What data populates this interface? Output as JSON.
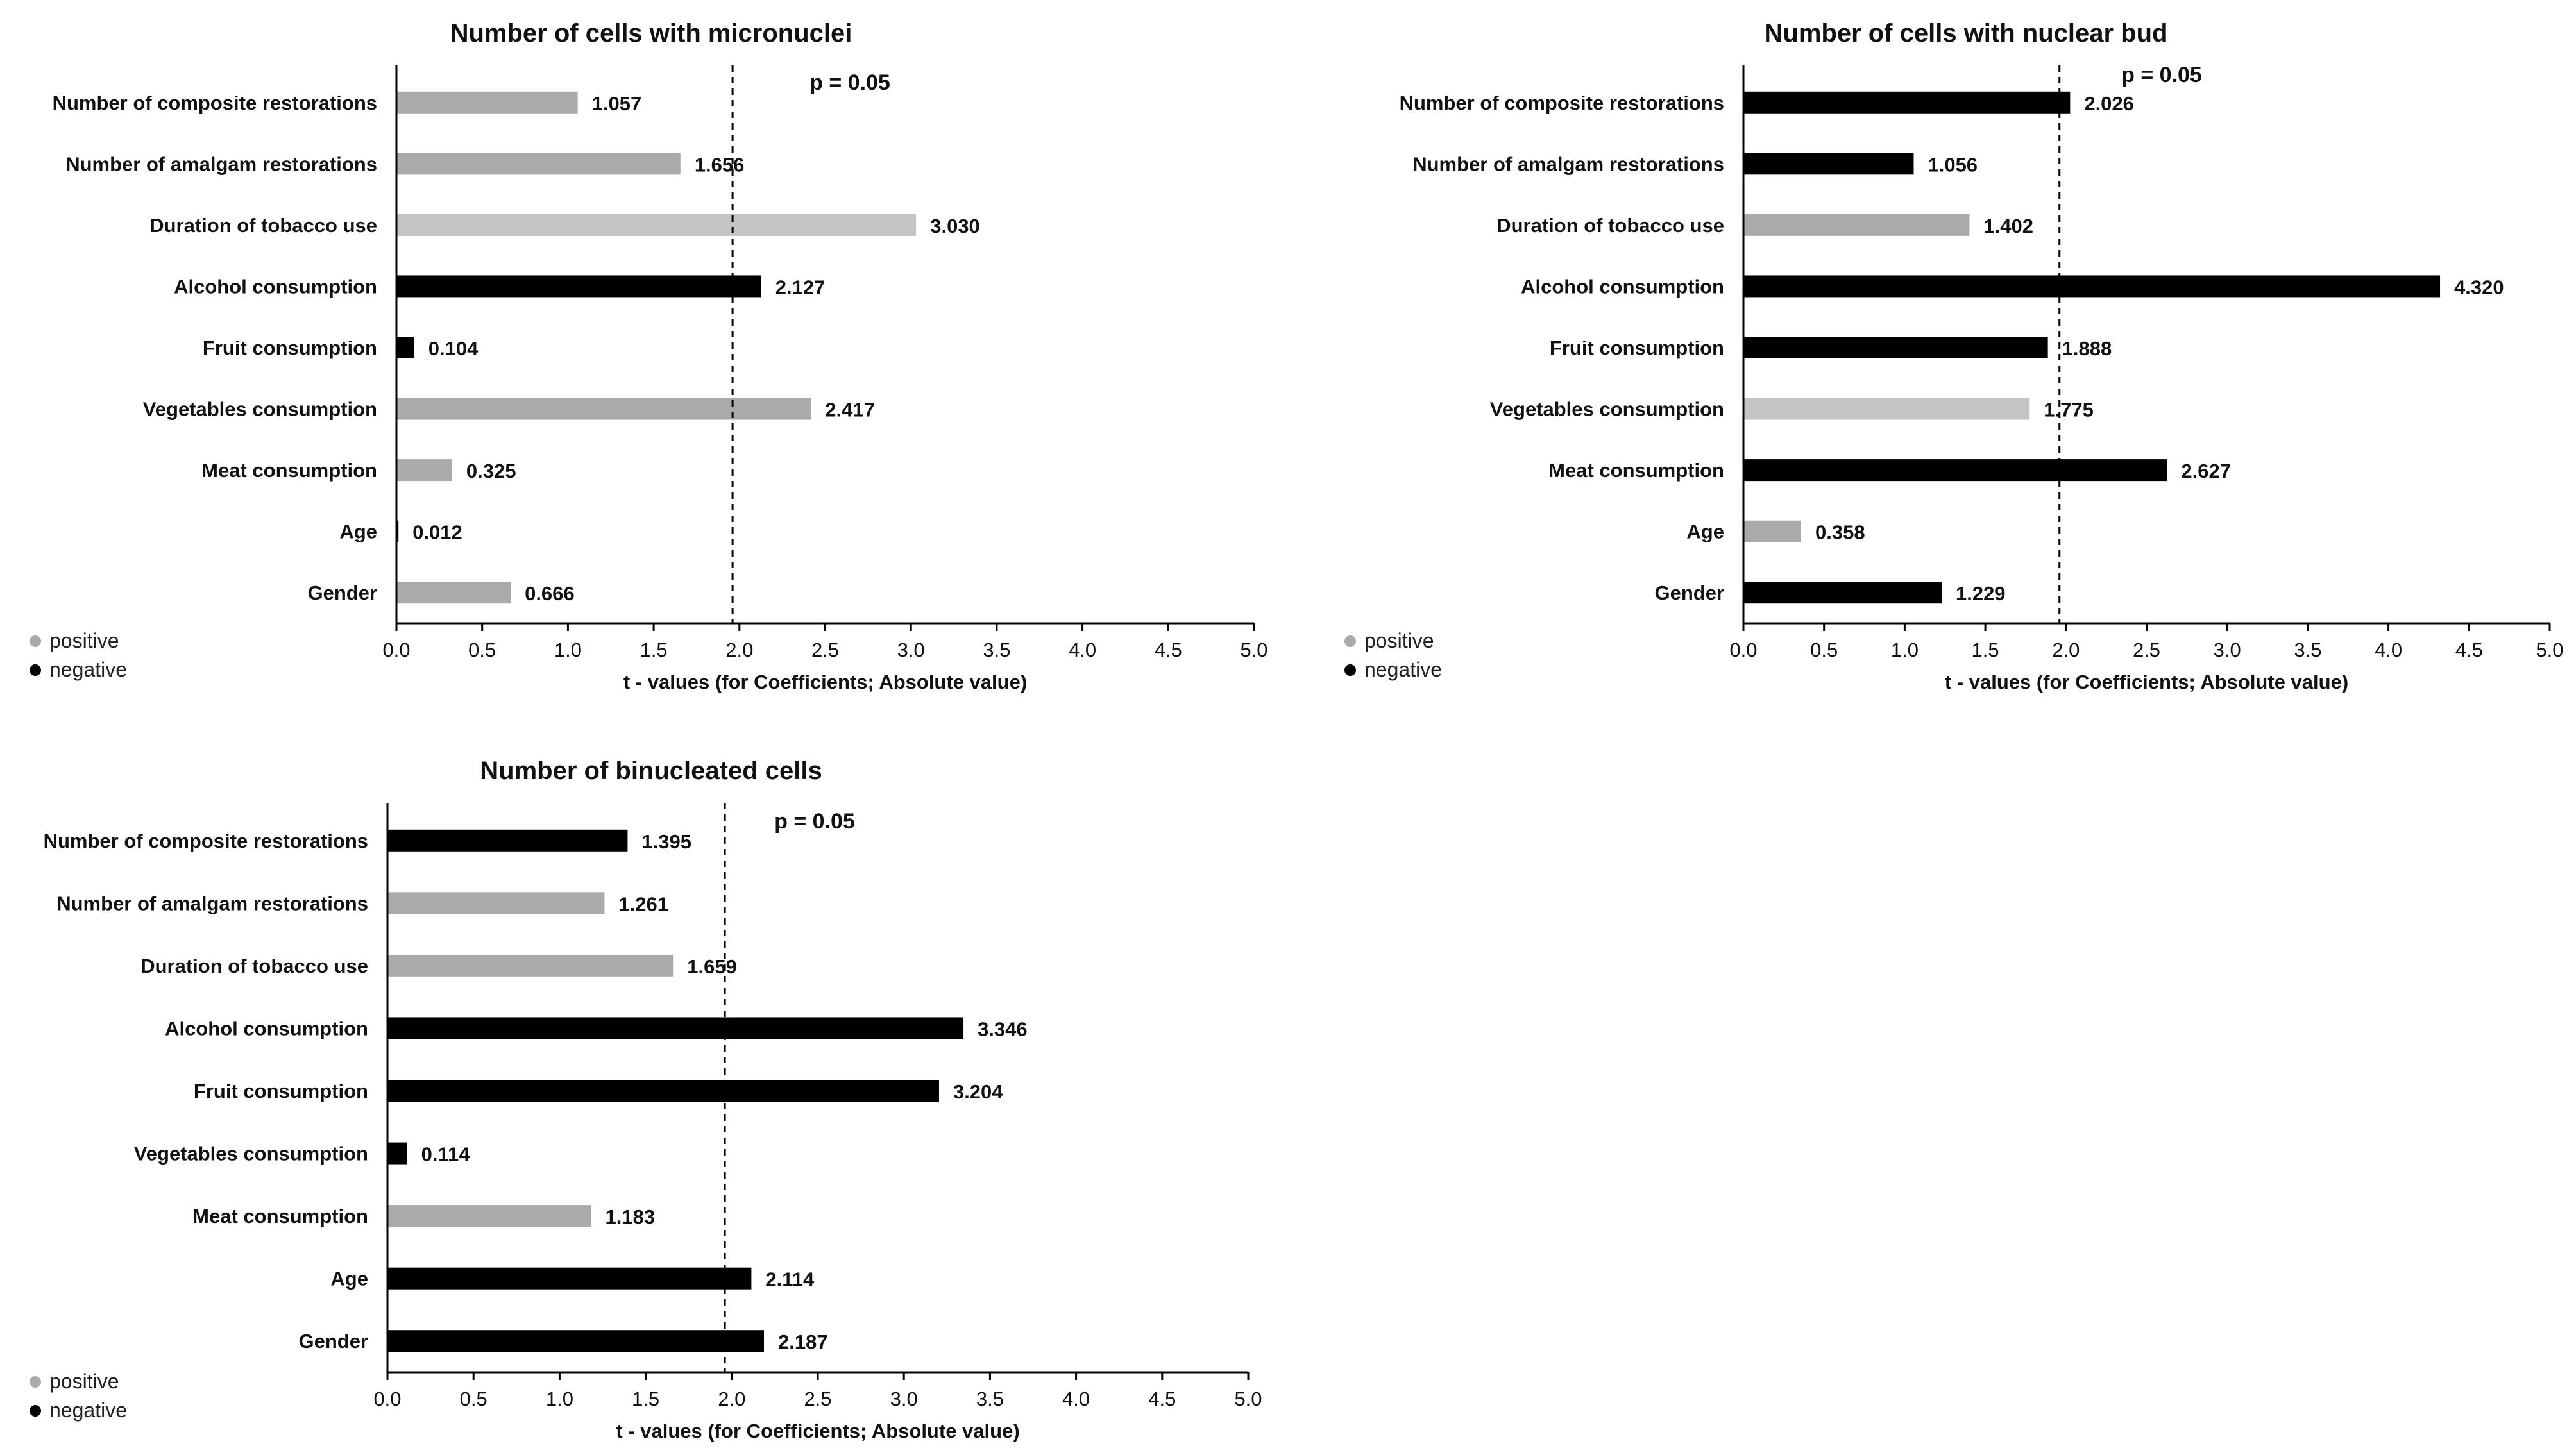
{
  "colors": {
    "positive": "#aaaaaa",
    "positive_light": "#c4c4c4",
    "negative": "#000000"
  },
  "chart_data": [
    {
      "type": "bar",
      "orientation": "horizontal",
      "title": "Number of cells with micronuclei",
      "xlabel": "t - values (for Coefficients; Absolute value)",
      "xlim": [
        0,
        5
      ],
      "xticks": [
        "0.0",
        "0.5",
        "1.0",
        "1.5",
        "2.0",
        "2.5",
        "3.0",
        "3.5",
        "4.0",
        "4.5",
        "5.0"
      ],
      "reference_line": {
        "x": 1.96,
        "label": "p = 0.05"
      },
      "legend": [
        "positive",
        "negative"
      ],
      "categories": [
        "Number of composite restorations",
        "Number of amalgam restorations",
        "Duration of tobacco use",
        "Alcohol consumption",
        "Fruit consumption",
        "Vegetables consumption",
        "Meat consumption",
        "Age",
        "Gender"
      ],
      "values": [
        1.057,
        1.656,
        3.03,
        2.127,
        0.104,
        2.417,
        0.325,
        0.012,
        0.666
      ],
      "labels": [
        "1.057",
        "1.656",
        "3.030",
        "2.127",
        "0.104",
        "2.417",
        "0.325",
        "0.012",
        "0.666"
      ],
      "signs": [
        "positive",
        "positive",
        "positive",
        "negative",
        "negative",
        "positive",
        "positive",
        "negative",
        "positive"
      ]
    },
    {
      "type": "bar",
      "orientation": "horizontal",
      "title": "Number of cells with nuclear bud",
      "xlabel": "t - values (for Coefficients; Absolute value)",
      "xlim": [
        0,
        5
      ],
      "xticks": [
        "0.0",
        "0.5",
        "1.0",
        "1.5",
        "2.0",
        "2.5",
        "3.0",
        "3.5",
        "4.0",
        "4.5",
        "5.0"
      ],
      "reference_line": {
        "x": 1.96,
        "label": "p = 0.05"
      },
      "legend": [
        "positive",
        "negative"
      ],
      "categories": [
        "Number of composite restorations",
        "Number of amalgam restorations",
        "Duration of tobacco use",
        "Alcohol consumption",
        "Fruit consumption",
        "Vegetables consumption",
        "Meat consumption",
        "Age",
        "Gender"
      ],
      "values": [
        2.026,
        1.056,
        1.402,
        4.32,
        1.888,
        1.775,
        2.627,
        0.358,
        1.229
      ],
      "labels": [
        "2.026",
        "1.056",
        "1.402",
        "4.320",
        "1.888",
        "1.775",
        "2.627",
        "0.358",
        "1.229"
      ],
      "signs": [
        "negative",
        "negative",
        "positive",
        "negative",
        "negative",
        "positive",
        "negative",
        "positive",
        "negative"
      ]
    },
    {
      "type": "bar",
      "orientation": "horizontal",
      "title": "Number of binucleated cells",
      "xlabel": "t - values (for Coefficients; Absolute value)",
      "xlim": [
        0,
        5
      ],
      "xticks": [
        "0.0",
        "0.5",
        "1.0",
        "1.5",
        "2.0",
        "2.5",
        "3.0",
        "3.5",
        "4.0",
        "4.5",
        "5.0"
      ],
      "reference_line": {
        "x": 1.96,
        "label": "p = 0.05"
      },
      "legend": [
        "positive",
        "negative"
      ],
      "categories": [
        "Number of composite restorations",
        "Number of amalgam restorations",
        "Duration of tobacco use",
        "Alcohol consumption",
        "Fruit consumption",
        "Vegetables consumption",
        "Meat consumption",
        "Age",
        "Gender"
      ],
      "values": [
        1.395,
        1.261,
        1.659,
        3.346,
        3.204,
        0.114,
        1.183,
        2.114,
        2.187
      ],
      "labels": [
        "1.395",
        "1.261",
        "1.659",
        "3.346",
        "3.204",
        "0.114",
        "1.183",
        "2.114",
        "2.187"
      ],
      "signs": [
        "negative",
        "positive",
        "positive",
        "negative",
        "negative",
        "negative",
        "positive",
        "negative",
        "negative"
      ]
    }
  ]
}
